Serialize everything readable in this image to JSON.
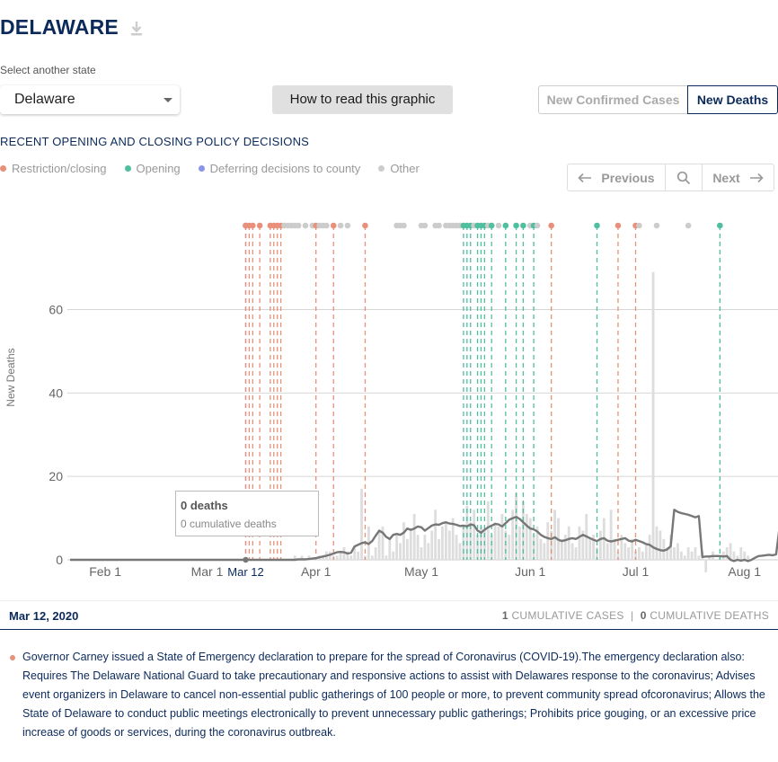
{
  "header": {
    "title": "DELAWARE",
    "download_icon": "download-icon"
  },
  "controls": {
    "select_label": "Select another state",
    "selected_state": "Delaware",
    "howto_label": "How to read this graphic",
    "toggle_cases": "New Confirmed Cases",
    "toggle_deaths": "New Deaths",
    "active_toggle": "New Deaths"
  },
  "policy": {
    "title": "RECENT OPENING AND CLOSING POLICY DECISIONS",
    "legend": [
      {
        "label": "Restriction/closing",
        "color": "#e8907a"
      },
      {
        "label": "Opening",
        "color": "#4fbfa0"
      },
      {
        "label": "Deferring decisions to county",
        "color": "#8a95e8"
      },
      {
        "label": "Other",
        "color": "#cccccc"
      }
    ],
    "nav": {
      "previous": "Previous",
      "next": "Next",
      "zoom_icon": "search-icon"
    }
  },
  "tooltip": {
    "deaths": "0 deaths",
    "cumulative": "0 cumulative deaths"
  },
  "date_bar": {
    "date": "Mar 12, 2020",
    "cum_cases_value": "1",
    "cum_cases_label": "CUMULATIVE CASES",
    "separator": "|",
    "cum_deaths_value": "0",
    "cum_deaths_label": "CUMULATIVE DEATHS"
  },
  "description": {
    "color": "#e8907a",
    "text": "Governor Carney issued a State of Emergency declaration to prepare for the spread of Coronavirus (COVID-19).The emergency declaration also: Requires The Delaware National Guard to take precautionary and responsive actions to assist with Delawares response to the coronavirus; Advises event organizers in Delaware to cancel non-essential public gatherings of 100 people or more, to prevent community spread ofcoronavirus; Allows the State of Delaware to conduct public meetings electronically to prevent unnecessary public gatherings; Prohibits price gouging, or an excessive price increase of goods or services, during the coronavirus outbreak."
  },
  "chart_data": {
    "type": "bar",
    "ylabel": "New Deaths",
    "ylim": [
      0,
      78
    ],
    "yticks": [
      0,
      20,
      40,
      60
    ],
    "x_start": "2020-01-22",
    "x_end": "2020-08-09",
    "xticks": [
      {
        "date": "2020-02-01",
        "label": "Feb 1"
      },
      {
        "date": "2020-03-01",
        "label": "Mar 1"
      },
      {
        "date": "2020-03-12",
        "label": "Mar 12",
        "highlight": true
      },
      {
        "date": "2020-04-01",
        "label": "Apr 1"
      },
      {
        "date": "2020-05-01",
        "label": "May 1"
      },
      {
        "date": "2020-06-01",
        "label": "Jun 1"
      },
      {
        "date": "2020-07-01",
        "label": "Jul 1"
      },
      {
        "date": "2020-08-01",
        "label": "Aug 1"
      }
    ],
    "selected_date": "2020-03-12",
    "series": [
      {
        "name": "Daily new deaths",
        "style": "bars",
        "color": "#dddddd"
      },
      {
        "name": "7-day average",
        "style": "line",
        "color": "#777777"
      }
    ],
    "daily_start": "2020-03-12",
    "daily_values": [
      0,
      0,
      0,
      0,
      0,
      0,
      0,
      0,
      0,
      0,
      0,
      0,
      0,
      0,
      1,
      0,
      1,
      0,
      1,
      0,
      0,
      1,
      1,
      2,
      2,
      1,
      1,
      2,
      3,
      2,
      1,
      3,
      2,
      17,
      1,
      8,
      1,
      3,
      7,
      8,
      1,
      5,
      2,
      6,
      4,
      9,
      5,
      7,
      11,
      6,
      3,
      6,
      4,
      7,
      12,
      5,
      8,
      9,
      7,
      10,
      6,
      4,
      8,
      13,
      9,
      12,
      6,
      8,
      7,
      14,
      6,
      9,
      8,
      11,
      7,
      6,
      12,
      16,
      8,
      14,
      11,
      10,
      6,
      8,
      5,
      4,
      9,
      7,
      12,
      10,
      5,
      6,
      8,
      4,
      3,
      8,
      7,
      11,
      5,
      6,
      3,
      7,
      10,
      4,
      12,
      5,
      2,
      6,
      4,
      3,
      5,
      2,
      3,
      2,
      4,
      6,
      69,
      8,
      7,
      5,
      3,
      6,
      3,
      4,
      2,
      1,
      3,
      2,
      3,
      1,
      2,
      -3,
      1,
      2,
      0,
      1,
      2,
      3,
      4,
      2,
      1,
      3,
      2,
      1
    ],
    "avg_values": [
      0,
      0,
      0,
      0,
      0,
      0,
      0,
      0,
      0,
      0,
      0,
      0,
      0,
      0,
      0,
      0.1,
      0.1,
      0.1,
      0.2,
      0.3,
      0.4,
      0.6,
      0.8,
      1,
      1.2,
      1.5,
      1.8,
      1.9,
      1.8,
      1.5,
      1.7,
      3.2,
      3.6,
      4,
      4.2,
      3.8,
      4.5,
      5.8,
      7,
      6.5,
      5.5,
      5,
      6,
      6.2,
      6,
      6.5,
      7.5,
      7.2,
      7.5,
      8,
      7.8,
      7,
      7.6,
      8.2,
      8.5,
      8.4,
      8.8,
      9,
      8.7,
      8.6,
      8.4,
      8.1,
      8.2,
      8,
      8.5,
      8.3,
      7,
      6.5,
      7.2,
      7.8,
      8.2,
      8.6,
      8.5,
      8,
      8.8,
      9.6,
      10,
      10.3,
      9.8,
      9,
      8.2,
      7.5,
      7.3,
      6.8,
      6,
      5.5,
      5.2,
      5,
      5.4,
      4.8,
      4.5,
      4.7,
      5,
      5.2,
      5,
      5.5,
      6,
      5.6,
      5.2,
      4.8,
      4.5,
      5,
      5.2,
      4.6,
      4.4,
      4.6,
      4.8,
      5,
      5.2,
      4.6,
      4.4,
      4.8,
      4.5,
      4.2,
      3.8,
      3.6,
      3,
      2.6,
      2.3,
      2.2,
      2.5,
      3.3,
      12,
      11.5,
      11.2,
      11,
      10.8,
      10.5,
      10.2,
      10.5,
      0.7,
      0.8,
      0.8,
      0.9,
      0.9,
      0.9,
      0.8,
      0.9,
      0,
      -0.3,
      0,
      -0.2,
      0,
      -0.3,
      0,
      0.5,
      0.9,
      1,
      1.1,
      1.2,
      1.1,
      1.3,
      8,
      7.8,
      7.6,
      1.6,
      2.3,
      2.5,
      2.4,
      2.3
    ],
    "policy_events": [
      {
        "date": "2020-03-12",
        "type": "deferring"
      },
      {
        "date": "2020-03-12",
        "type": "restriction"
      },
      {
        "date": "2020-03-13",
        "type": "restriction"
      },
      {
        "date": "2020-03-14",
        "type": "restriction"
      },
      {
        "date": "2020-03-16",
        "type": "restriction"
      },
      {
        "date": "2020-03-19",
        "type": "restriction"
      },
      {
        "date": "2020-03-20",
        "type": "restriction"
      },
      {
        "date": "2020-03-21",
        "type": "restriction"
      },
      {
        "date": "2020-03-22",
        "type": "restriction"
      },
      {
        "date": "2020-03-23",
        "type": "other"
      },
      {
        "date": "2020-03-24",
        "type": "other"
      },
      {
        "date": "2020-03-25",
        "type": "other"
      },
      {
        "date": "2020-03-26",
        "type": "other"
      },
      {
        "date": "2020-03-27",
        "type": "other"
      },
      {
        "date": "2020-03-29",
        "type": "other"
      },
      {
        "date": "2020-03-31",
        "type": "other"
      },
      {
        "date": "2020-04-01",
        "type": "restriction"
      },
      {
        "date": "2020-04-02",
        "type": "other"
      },
      {
        "date": "2020-04-03",
        "type": "other"
      },
      {
        "date": "2020-04-04",
        "type": "other"
      },
      {
        "date": "2020-04-06",
        "type": "restriction"
      },
      {
        "date": "2020-04-08",
        "type": "other"
      },
      {
        "date": "2020-04-10",
        "type": "other"
      },
      {
        "date": "2020-04-15",
        "type": "restriction"
      },
      {
        "date": "2020-04-24",
        "type": "other"
      },
      {
        "date": "2020-04-25",
        "type": "other"
      },
      {
        "date": "2020-04-26",
        "type": "other"
      },
      {
        "date": "2020-05-01",
        "type": "other"
      },
      {
        "date": "2020-05-02",
        "type": "other"
      },
      {
        "date": "2020-05-05",
        "type": "other"
      },
      {
        "date": "2020-05-06",
        "type": "other"
      },
      {
        "date": "2020-05-08",
        "type": "other"
      },
      {
        "date": "2020-05-09",
        "type": "other"
      },
      {
        "date": "2020-05-10",
        "type": "other"
      },
      {
        "date": "2020-05-11",
        "type": "other"
      },
      {
        "date": "2020-05-12",
        "type": "other"
      },
      {
        "date": "2020-05-13",
        "type": "opening"
      },
      {
        "date": "2020-05-14",
        "type": "opening"
      },
      {
        "date": "2020-05-15",
        "type": "opening"
      },
      {
        "date": "2020-05-16",
        "type": "other"
      },
      {
        "date": "2020-05-17",
        "type": "opening"
      },
      {
        "date": "2020-05-18",
        "type": "opening"
      },
      {
        "date": "2020-05-19",
        "type": "opening"
      },
      {
        "date": "2020-05-20",
        "type": "other"
      },
      {
        "date": "2020-05-21",
        "type": "opening"
      },
      {
        "date": "2020-05-23",
        "type": "other"
      },
      {
        "date": "2020-05-25",
        "type": "opening"
      },
      {
        "date": "2020-05-28",
        "type": "opening"
      },
      {
        "date": "2020-05-30",
        "type": "opening"
      },
      {
        "date": "2020-06-01",
        "type": "other"
      },
      {
        "date": "2020-06-02",
        "type": "opening"
      },
      {
        "date": "2020-06-03",
        "type": "other"
      },
      {
        "date": "2020-06-07",
        "type": "restriction"
      },
      {
        "date": "2020-06-20",
        "type": "opening"
      },
      {
        "date": "2020-06-26",
        "type": "restriction"
      },
      {
        "date": "2020-07-01",
        "type": "restriction"
      },
      {
        "date": "2020-07-02",
        "type": "other"
      },
      {
        "date": "2020-07-07",
        "type": "other"
      },
      {
        "date": "2020-07-16",
        "type": "other"
      },
      {
        "date": "2020-07-25",
        "type": "opening"
      }
    ]
  }
}
